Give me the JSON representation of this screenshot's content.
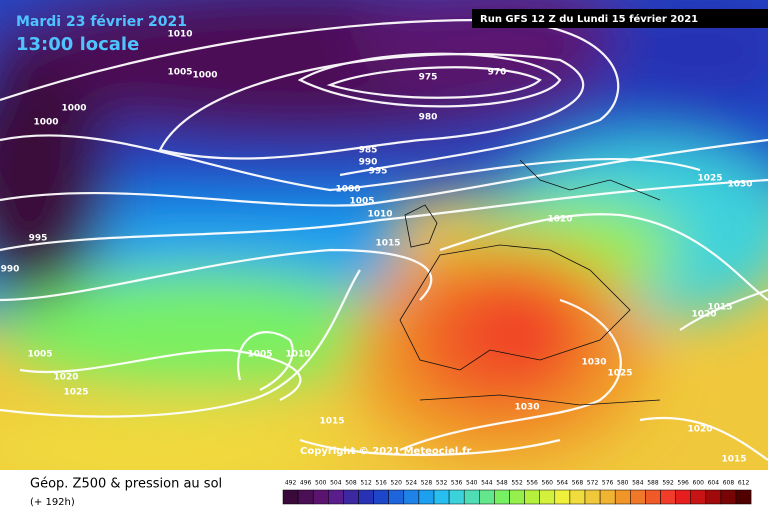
{
  "header": {
    "date": "Mardi 23 février 2021",
    "time": "13:00 locale",
    "run": "Run GFS 12 Z du Lundi 15 février 2021"
  },
  "isobar_labels": [
    1010,
    1005,
    1000,
    1000,
    1000,
    975,
    970,
    980,
    985,
    990,
    995,
    1000,
    1005,
    1010,
    1015,
    1020,
    995,
    990,
    1025,
    1030,
    1015,
    1020,
    1005,
    1005,
    1010,
    1020,
    1025,
    1030,
    1025,
    1015,
    1030,
    1020,
    1015
  ],
  "copyright": "Copyright © 2021 Meteociel.fr",
  "footer": {
    "title": "Géop. Z500 & pression au sol",
    "lead": "(+ 192h)"
  },
  "scale": {
    "values": [
      492,
      496,
      500,
      504,
      508,
      512,
      516,
      520,
      524,
      528,
      532,
      536,
      540,
      544,
      548,
      552,
      556,
      560,
      564,
      568,
      572,
      576,
      580,
      584,
      588,
      592,
      596,
      600,
      604,
      608,
      612
    ],
    "colors": [
      "#3a0a3a",
      "#4b0f55",
      "#5a1470",
      "#5a1e8c",
      "#3c28a0",
      "#2832b4",
      "#1e46c8",
      "#1e64dc",
      "#1e82e6",
      "#1ea0f0",
      "#28bef0",
      "#3cd2dc",
      "#50dcb4",
      "#64e68c",
      "#78f064",
      "#96f04b",
      "#b4f03c",
      "#d2f03c",
      "#f0f03c",
      "#f0dc3c",
      "#f0c83c",
      "#f0b432",
      "#f09628",
      "#f07828",
      "#f05a28",
      "#f03c28",
      "#e61e1e",
      "#c81414",
      "#a00a0a",
      "#780505",
      "#500000"
    ]
  }
}
